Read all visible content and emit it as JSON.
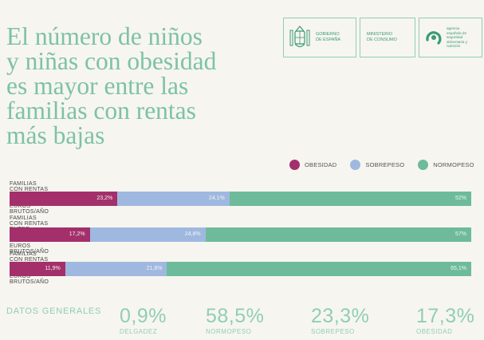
{
  "title_lines": [
    "El número de niños",
    "y niñas con obesidad",
    "es mayor entre las",
    "familias con rentas",
    "más bajas"
  ],
  "logos": {
    "gobierno": [
      "GOBIERNO",
      "DE ESPAÑA"
    ],
    "ministerio": [
      "MINISTERIO",
      "DE CONSUMO"
    ],
    "agencia": [
      "agencia",
      "española de",
      "seguridad",
      "alimentaria y",
      "nutrición"
    ]
  },
  "colors": {
    "obesidad": "#a3306b",
    "sobrepeso": "#9fb8e0",
    "normopeso": "#6dbb9a",
    "accent": "#8fcfb2"
  },
  "chart_data": {
    "type": "bar",
    "orientation": "horizontal-stacked-100",
    "legend": [
      "OBESIDAD",
      "SOBREPESO",
      "NORMOPESO"
    ],
    "categories": [
      "FAMILIAS CON RENTAS INFERIORES A 18.000 EUROS BRUTOS/AÑO",
      "FAMILIAS CON RENTAS ENTRE 18.000 Y 30.000 EUROS BRUTOS/AÑO",
      "FAMILIAS CON RENTAS SUPERIORES A 30.000 EUROS BRUTOS/AÑO"
    ],
    "series": [
      {
        "name": "OBESIDAD",
        "values": [
          23.2,
          17.2,
          11.9
        ],
        "labels": [
          "23,2%",
          "17,2%",
          "11,9%"
        ]
      },
      {
        "name": "SOBREPESO",
        "values": [
          24.1,
          24.8,
          21.8
        ],
        "labels": [
          "24,1%",
          "24,8%",
          "21,8%"
        ]
      },
      {
        "name": "NORMOPESO",
        "values": [
          52,
          57,
          65.1
        ],
        "labels": [
          "52%",
          "57%",
          "65,1%"
        ]
      }
    ]
  },
  "general": {
    "label": "DATOS GENERALES",
    "stats": [
      {
        "value": "0,9%",
        "label": "DELGADEZ"
      },
      {
        "value": "58,5%",
        "label": "NORMOPESO"
      },
      {
        "value": "23,3%",
        "label": "SOBREPESO"
      },
      {
        "value": "17,3%",
        "label": "OBESIDAD"
      }
    ]
  }
}
